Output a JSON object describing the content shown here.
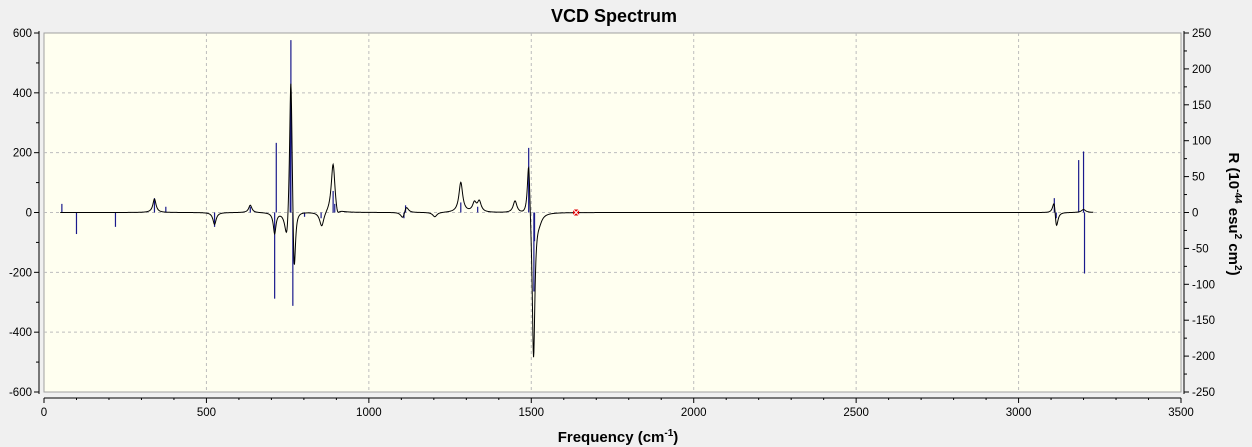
{
  "chart_data": {
    "type": "line",
    "title": "VCD Spectrum",
    "xlabel": {
      "prefix": "Frequency (cm",
      "sup": "-1",
      "suffix": ")"
    },
    "ylabel_left": "",
    "ylabel_right": {
      "t1": "R (10",
      "sup1": "-44",
      "t2": " esu",
      "sup2": "2",
      "t3": " cm",
      "sup3": "2",
      "t4": ")"
    },
    "xlim": [
      0,
      3500
    ],
    "ylim_left": [
      -600,
      600
    ],
    "ylim_right": [
      -250,
      250
    ],
    "x_ticks": [
      0,
      500,
      1000,
      1500,
      2000,
      2500,
      3000,
      3500
    ],
    "y_left_ticks": [
      -600,
      -400,
      -200,
      0,
      200,
      400,
      600
    ],
    "y_right_ticks": [
      -250,
      -200,
      -150,
      -100,
      -50,
      0,
      50,
      100,
      150,
      200,
      250
    ],
    "grid": true,
    "marker_point": {
      "x": 1638,
      "y": 0
    },
    "stick_series": [
      {
        "x": 55,
        "y": 12
      },
      {
        "x": 100,
        "y": -30
      },
      {
        "x": 220,
        "y": -20
      },
      {
        "x": 340,
        "y": 20
      },
      {
        "x": 375,
        "y": 8
      },
      {
        "x": 525,
        "y": -20
      },
      {
        "x": 635,
        "y": 8
      },
      {
        "x": 710,
        "y": -120
      },
      {
        "x": 715,
        "y": 97
      },
      {
        "x": 758,
        "y": 130
      },
      {
        "x": 760,
        "y": 240
      },
      {
        "x": 766,
        "y": -130
      },
      {
        "x": 802,
        "y": -6
      },
      {
        "x": 853,
        "y": -8
      },
      {
        "x": 890,
        "y": 30
      },
      {
        "x": 895,
        "y": 12
      },
      {
        "x": 1108,
        "y": -8
      },
      {
        "x": 1113,
        "y": 10
      },
      {
        "x": 1283,
        "y": 14
      },
      {
        "x": 1335,
        "y": 8
      },
      {
        "x": 1492,
        "y": 90
      },
      {
        "x": 1508,
        "y": -110
      },
      {
        "x": 1510,
        "y": -40
      },
      {
        "x": 3110,
        "y": 20
      },
      {
        "x": 3116,
        "y": -8
      },
      {
        "x": 3185,
        "y": 73
      },
      {
        "x": 3200,
        "y": 85
      },
      {
        "x": 3203,
        "y": -85
      }
    ],
    "curve_peaks": [
      {
        "x": 340,
        "y": 45,
        "w": 6
      },
      {
        "x": 525,
        "y": -40,
        "w": 6
      },
      {
        "x": 635,
        "y": 25,
        "w": 6
      },
      {
        "x": 710,
        "y": -70,
        "w": 5
      },
      {
        "x": 748,
        "y": -120,
        "w": 8
      },
      {
        "x": 760,
        "y": 520,
        "w": 5
      },
      {
        "x": 770,
        "y": -260,
        "w": 5
      },
      {
        "x": 855,
        "y": -50,
        "w": 8
      },
      {
        "x": 890,
        "y": 170,
        "w": 7
      },
      {
        "x": 903,
        "y": -30,
        "w": 7
      },
      {
        "x": 1105,
        "y": -25,
        "w": 8
      },
      {
        "x": 1115,
        "y": 25,
        "w": 8
      },
      {
        "x": 1203,
        "y": -15,
        "w": 8
      },
      {
        "x": 1283,
        "y": 100,
        "w": 7
      },
      {
        "x": 1325,
        "y": 30,
        "w": 7
      },
      {
        "x": 1340,
        "y": 35,
        "w": 7
      },
      {
        "x": 1450,
        "y": 40,
        "w": 7
      },
      {
        "x": 1492,
        "y": 200,
        "w": 5
      },
      {
        "x": 1507,
        "y": -500,
        "w": 5
      },
      {
        "x": 1525,
        "y": -20,
        "w": 10
      },
      {
        "x": 3110,
        "y": 60,
        "w": 6
      },
      {
        "x": 3116,
        "y": -70,
        "w": 6
      },
      {
        "x": 3200,
        "y": 10,
        "w": 8
      }
    ],
    "colors": {
      "plot_bg": "#fffff0",
      "page_bg": "#f0f0f0",
      "curve": "#000000",
      "sticks": "#1a1a8c",
      "marker": "#e00000",
      "grid": "#bdbdbd",
      "axis": "#000000"
    }
  }
}
